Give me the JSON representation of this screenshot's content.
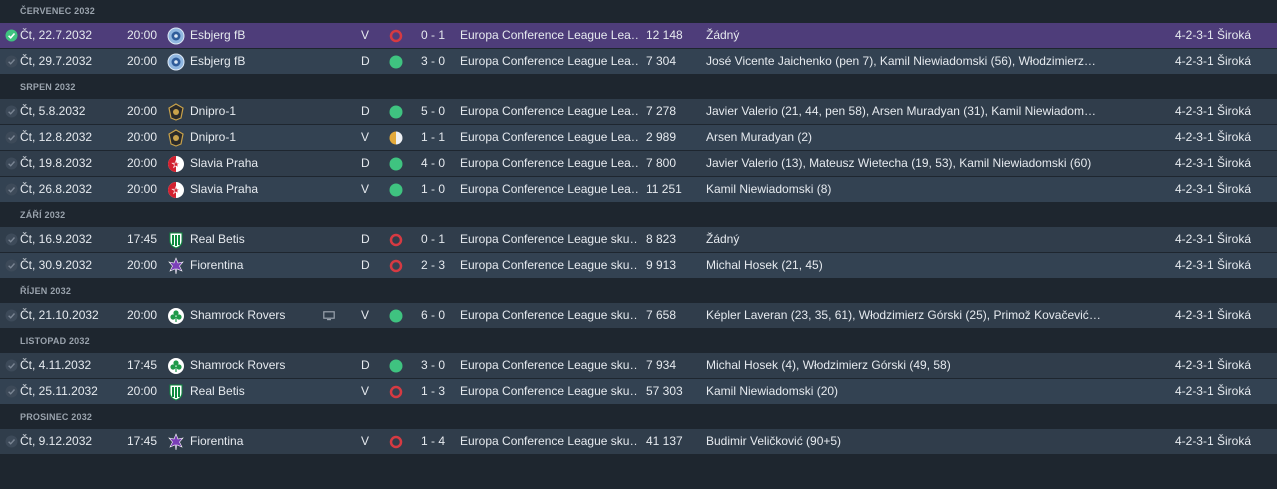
{
  "colors": {
    "win": "#3fc380",
    "loss": "#d63a42",
    "draw_left": "#e3a93a",
    "draw_right": "#eef0f3",
    "selected_row": "#4e3d7a",
    "row": "#303d4b",
    "row_alt": "#334252"
  },
  "months": [
    {
      "label": "ČERVENEC 2032",
      "matches": [
        {
          "date": "Čt, 22.7.2032",
          "time": "20:00",
          "crest": "esbjerg-crest-icon",
          "team": "Esbjerg fB",
          "tv": false,
          "venue": "V",
          "result": "loss",
          "score": "0 - 1",
          "competition": "Europa Conference League Lea…",
          "attendance": "12 148",
          "scorers": "Žádný",
          "formation": "4-2-3-1 Široká",
          "selected": true
        },
        {
          "date": "Čt, 29.7.2032",
          "time": "20:00",
          "crest": "esbjerg-crest-icon",
          "team": "Esbjerg fB",
          "tv": false,
          "venue": "D",
          "result": "win",
          "score": "3 - 0",
          "competition": "Europa Conference League Lea…",
          "attendance": "7 304",
          "scorers": "José Vicente Jaichenko (pen 7), Kamil Niewiadomski (56), Włodzimierz…",
          "formation": "4-2-3-1 Široká",
          "selected": false
        }
      ]
    },
    {
      "label": "SRPEN 2032",
      "matches": [
        {
          "date": "Čt, 5.8.2032",
          "time": "20:00",
          "crest": "dnipro-crest-icon",
          "team": "Dnipro-1",
          "tv": false,
          "venue": "D",
          "result": "win",
          "score": "5 - 0",
          "competition": "Europa Conference League Lea…",
          "attendance": "7 278",
          "scorers": "Javier Valerio (21, 44, pen 58), Arsen Muradyan (31), Kamil Niewiadom…",
          "formation": "4-2-3-1 Široká",
          "selected": false
        },
        {
          "date": "Čt, 12.8.2032",
          "time": "20:00",
          "crest": "dnipro-crest-icon",
          "team": "Dnipro-1",
          "tv": false,
          "venue": "V",
          "result": "draw",
          "score": "1 - 1",
          "competition": "Europa Conference League Lea…",
          "attendance": "2 989",
          "scorers": "Arsen Muradyan (2)",
          "formation": "4-2-3-1 Široká",
          "selected": false
        },
        {
          "date": "Čt, 19.8.2032",
          "time": "20:00",
          "crest": "slavia-crest-icon",
          "team": "Slavia Praha",
          "tv": false,
          "venue": "D",
          "result": "win",
          "score": "4 - 0",
          "competition": "Europa Conference League Lea…",
          "attendance": "7 800",
          "scorers": "Javier Valerio (13), Mateusz Wietecha (19, 53), Kamil Niewiadomski (60)",
          "formation": "4-2-3-1 Široká",
          "selected": false
        },
        {
          "date": "Čt, 26.8.2032",
          "time": "20:00",
          "crest": "slavia-crest-icon",
          "team": "Slavia Praha",
          "tv": false,
          "venue": "V",
          "result": "win",
          "score": "1 - 0",
          "competition": "Europa Conference League Lea…",
          "attendance": "11 251",
          "scorers": "Kamil Niewiadomski (8)",
          "formation": "4-2-3-1 Široká",
          "selected": false
        }
      ]
    },
    {
      "label": "ZÁŘÍ 2032",
      "matches": [
        {
          "date": "Čt, 16.9.2032",
          "time": "17:45",
          "crest": "betis-crest-icon",
          "team": "Real Betis",
          "tv": false,
          "venue": "D",
          "result": "loss",
          "score": "0 - 1",
          "competition": "Europa Conference League sku…",
          "attendance": "8 823",
          "scorers": "Žádný",
          "formation": "4-2-3-1 Široká",
          "selected": false
        },
        {
          "date": "Čt, 30.9.2032",
          "time": "20:00",
          "crest": "fiorentina-crest-icon",
          "team": "Fiorentina",
          "tv": false,
          "venue": "D",
          "result": "loss",
          "score": "2 - 3",
          "competition": "Europa Conference League sku…",
          "attendance": "9 913",
          "scorers": "Michal Hosek (21, 45)",
          "formation": "4-2-3-1 Široká",
          "selected": false
        }
      ]
    },
    {
      "label": "ŘÍJEN 2032",
      "matches": [
        {
          "date": "Čt, 21.10.2032",
          "time": "20:00",
          "crest": "shamrock-crest-icon",
          "team": "Shamrock Rovers",
          "tv": true,
          "venue": "V",
          "result": "win",
          "score": "6 - 0",
          "competition": "Europa Conference League sku…",
          "attendance": "7 658",
          "scorers": "Képler Laveran (23, 35, 61), Włodzimierz Górski (25), Primož Kovačević (…",
          "formation": "4-2-3-1 Široká",
          "selected": false
        }
      ]
    },
    {
      "label": "LISTOPAD 2032",
      "matches": [
        {
          "date": "Čt, 4.11.2032",
          "time": "17:45",
          "crest": "shamrock-crest-icon",
          "team": "Shamrock Rovers",
          "tv": false,
          "venue": "D",
          "result": "win",
          "score": "3 - 0",
          "competition": "Europa Conference League sku…",
          "attendance": "7 934",
          "scorers": "Michal Hosek (4), Włodzimierz Górski (49, 58)",
          "formation": "4-2-3-1 Široká",
          "selected": false
        },
        {
          "date": "Čt, 25.11.2032",
          "time": "20:00",
          "crest": "betis-crest-icon",
          "team": "Real Betis",
          "tv": false,
          "venue": "V",
          "result": "loss",
          "score": "1 - 3",
          "competition": "Europa Conference League sku…",
          "attendance": "57 303",
          "scorers": "Kamil Niewiadomski (20)",
          "formation": "4-2-3-1 Široká",
          "selected": false
        }
      ]
    },
    {
      "label": "PROSINEC 2032",
      "matches": [
        {
          "date": "Čt, 9.12.2032",
          "time": "17:45",
          "crest": "fiorentina-crest-icon",
          "team": "Fiorentina",
          "tv": false,
          "venue": "V",
          "result": "loss",
          "score": "1 - 4",
          "competition": "Europa Conference League sku…",
          "attendance": "41 137",
          "scorers": "Budimir Veličković (90+5)",
          "formation": "4-2-3-1 Široká",
          "selected": false
        }
      ]
    }
  ]
}
